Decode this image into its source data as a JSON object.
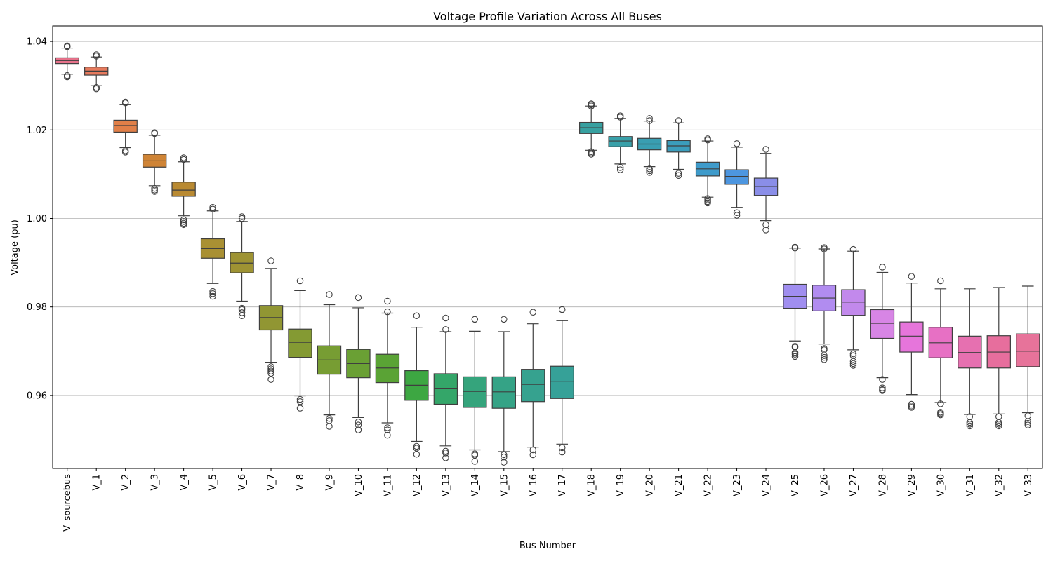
{
  "chart_data": {
    "type": "box",
    "title": "Voltage Profile Variation Across All Buses",
    "xlabel": "Bus Number",
    "ylabel": "Voltage (pu)",
    "ylim": [
      0.9435,
      1.0435
    ],
    "yticks": [
      "0.96",
      "0.98",
      "1.00",
      "1.02",
      "1.04"
    ],
    "ytick_values": [
      0.96,
      0.98,
      1.0,
      1.02,
      1.04
    ],
    "grid": "horizontal",
    "categories": [
      "V_sourcebus",
      "V_1",
      "V_2",
      "V_3",
      "V_4",
      "V_5",
      "V_6",
      "V_7",
      "V_8",
      "V_9",
      "V_10",
      "V_11",
      "V_12",
      "V_13",
      "V_14",
      "V_15",
      "V_16",
      "V_17",
      "V_18",
      "V_19",
      "V_20",
      "V_21",
      "V_22",
      "V_23",
      "V_24",
      "V_25",
      "V_26",
      "V_27",
      "V_28",
      "V_29",
      "V_30",
      "V_31",
      "V_32",
      "V_33"
    ],
    "colors": [
      "#e7728b",
      "#e67a5d",
      "#e07f48",
      "#cf8436",
      "#b98a32",
      "#a99033",
      "#9e9333",
      "#919633",
      "#849a33",
      "#779d33",
      "#6aa034",
      "#5aa335",
      "#3da742",
      "#34a669",
      "#35a47c",
      "#35a386",
      "#36a28f",
      "#36a198",
      "#37a0a0",
      "#38a0a9",
      "#399eb2",
      "#3b9dbc",
      "#3e9bcb",
      "#4d96e0",
      "#8a8ee8",
      "#a08ef0",
      "#b18cf0",
      "#c289ec",
      "#d785e5",
      "#e675db",
      "#e770c4",
      "#e670b0",
      "#e76e9d",
      "#e7739a"
    ],
    "boxes": [
      {
        "whislo": 1.0326,
        "q1": 1.035,
        "med": 1.0357,
        "q3": 1.0363,
        "whishi": 1.0385,
        "fliers": [
          1.032,
          1.0323,
          1.0388,
          1.039
        ]
      },
      {
        "whislo": 1.03,
        "q1": 1.0324,
        "med": 1.0333,
        "q3": 1.0342,
        "whishi": 1.0365,
        "fliers": [
          1.0293,
          1.0296,
          1.0367,
          1.037
        ]
      },
      {
        "whislo": 1.016,
        "q1": 1.0195,
        "med": 1.021,
        "q3": 1.0222,
        "whishi": 1.0257,
        "fliers": [
          1.015,
          1.0153,
          1.0261,
          1.0263
        ]
      },
      {
        "whislo": 1.0074,
        "q1": 1.0116,
        "med": 1.013,
        "q3": 1.0145,
        "whishi": 1.0188,
        "fliers": [
          1.0061,
          1.0064,
          1.0068,
          1.0192,
          1.0194
        ]
      },
      {
        "whislo": 1.0006,
        "q1": 1.005,
        "med": 1.0064,
        "q3": 1.0082,
        "whishi": 1.0128,
        "fliers": [
          0.9986,
          0.9989,
          0.9993,
          0.9997,
          1.0133,
          1.0137
        ]
      },
      {
        "whislo": 0.9853,
        "q1": 0.991,
        "med": 0.9932,
        "q3": 0.9954,
        "whishi": 1.0017,
        "fliers": [
          0.9824,
          0.983,
          0.9835,
          1.0021,
          1.0025
        ]
      },
      {
        "whislo": 0.9813,
        "q1": 0.9877,
        "med": 0.9899,
        "q3": 0.9923,
        "whishi": 0.9993,
        "fliers": [
          0.978,
          0.9787,
          0.9794,
          0.9797,
          1.0,
          1.0004
        ]
      },
      {
        "whislo": 0.9675,
        "q1": 0.9748,
        "med": 0.9776,
        "q3": 0.9803,
        "whishi": 0.9887,
        "fliers": [
          0.9636,
          0.965,
          0.9655,
          0.966,
          0.9665,
          0.9904
        ]
      },
      {
        "whislo": 0.9599,
        "q1": 0.9686,
        "med": 0.972,
        "q3": 0.975,
        "whishi": 0.9837,
        "fliers": [
          0.9571,
          0.9586,
          0.9591,
          0.9859
        ]
      },
      {
        "whislo": 0.9556,
        "q1": 0.9648,
        "med": 0.968,
        "q3": 0.9712,
        "whishi": 0.9805,
        "fliers": [
          0.953,
          0.9543,
          0.9548,
          0.9828
        ]
      },
      {
        "whislo": 0.955,
        "q1": 0.964,
        "med": 0.9672,
        "q3": 0.9704,
        "whishi": 0.9798,
        "fliers": [
          0.9522,
          0.9533,
          0.954,
          0.9821
        ]
      },
      {
        "whislo": 0.9538,
        "q1": 0.9629,
        "med": 0.9662,
        "q3": 0.9693,
        "whishi": 0.9786,
        "fliers": [
          0.951,
          0.9522,
          0.9527,
          0.9789,
          0.9813
        ]
      },
      {
        "whislo": 0.9496,
        "q1": 0.9589,
        "med": 0.9623,
        "q3": 0.9656,
        "whishi": 0.9754,
        "fliers": [
          0.9467,
          0.9481,
          0.9485,
          0.978
        ]
      },
      {
        "whislo": 0.9486,
        "q1": 0.958,
        "med": 0.9615,
        "q3": 0.9649,
        "whishi": 0.9744,
        "fliers": [
          0.9459,
          0.947,
          0.9474,
          0.9749,
          0.9775
        ]
      },
      {
        "whislo": 0.9477,
        "q1": 0.9573,
        "med": 0.9609,
        "q3": 0.9642,
        "whishi": 0.9745,
        "fliers": [
          0.9451,
          0.9465,
          0.9468,
          0.9772
        ]
      },
      {
        "whislo": 0.9473,
        "q1": 0.9571,
        "med": 0.9608,
        "q3": 0.9642,
        "whishi": 0.9744,
        "fliers": [
          0.9449,
          0.9461,
          0.9466,
          0.9772
        ]
      },
      {
        "whislo": 0.9483,
        "q1": 0.9586,
        "med": 0.9625,
        "q3": 0.9659,
        "whishi": 0.9762,
        "fliers": [
          0.9466,
          0.9477,
          0.9788
        ]
      },
      {
        "whislo": 0.949,
        "q1": 0.9593,
        "med": 0.9632,
        "q3": 0.9666,
        "whishi": 0.9769,
        "fliers": [
          0.9472,
          0.9482,
          0.9794
        ]
      },
      {
        "whislo": 1.0154,
        "q1": 1.0192,
        "med": 1.0205,
        "q3": 1.0217,
        "whishi": 1.0254,
        "fliers": [
          1.0145,
          1.0148,
          1.0151,
          1.0254,
          1.0257,
          1.0259
        ]
      },
      {
        "whislo": 1.0123,
        "q1": 1.0162,
        "med": 1.0175,
        "q3": 1.0185,
        "whishi": 1.0226,
        "fliers": [
          1.011,
          1.0115,
          1.0229,
          1.0232
        ]
      },
      {
        "whislo": 1.0117,
        "q1": 1.0155,
        "med": 1.0168,
        "q3": 1.0181,
        "whishi": 1.022,
        "fliers": [
          1.0104,
          1.0108,
          1.0112,
          1.0221,
          1.0226
        ]
      },
      {
        "whislo": 1.0111,
        "q1": 1.015,
        "med": 1.0164,
        "q3": 1.0176,
        "whishi": 1.0216,
        "fliers": [
          1.0097,
          1.0102,
          1.0221
        ]
      },
      {
        "whislo": 1.0048,
        "q1": 1.0096,
        "med": 1.0112,
        "q3": 1.0127,
        "whishi": 1.0175,
        "fliers": [
          1.0035,
          1.0038,
          1.0042,
          1.0045,
          1.0177,
          1.018
        ]
      },
      {
        "whislo": 1.0025,
        "q1": 1.0077,
        "med": 1.0095,
        "q3": 1.011,
        "whishi": 1.0161,
        "fliers": [
          1.0007,
          1.0013,
          1.0169
        ]
      },
      {
        "whislo": 0.9995,
        "q1": 1.0052,
        "med": 1.0072,
        "q3": 1.0091,
        "whishi": 1.0147,
        "fliers": [
          0.9974,
          0.9986,
          1.0156
        ]
      },
      {
        "whislo": 0.9723,
        "q1": 0.9797,
        "med": 0.9824,
        "q3": 0.9851,
        "whishi": 0.9933,
        "fliers": [
          0.9688,
          0.9693,
          0.9697,
          0.9709,
          0.9711,
          0.9933,
          0.9935
        ]
      },
      {
        "whislo": 0.9716,
        "q1": 0.9791,
        "med": 0.982,
        "q3": 0.9849,
        "whishi": 0.9931,
        "fliers": [
          0.9681,
          0.9686,
          0.969,
          0.9703,
          0.9706,
          0.9931,
          0.9934
        ]
      },
      {
        "whislo": 0.9703,
        "q1": 0.9781,
        "med": 0.9811,
        "q3": 0.9839,
        "whishi": 0.9926,
        "fliers": [
          0.9668,
          0.9672,
          0.9677,
          0.969,
          0.9694,
          0.993
        ]
      },
      {
        "whislo": 0.964,
        "q1": 0.9729,
        "med": 0.9763,
        "q3": 0.9794,
        "whishi": 0.9878,
        "fliers": [
          0.9611,
          0.9613,
          0.9617,
          0.9636,
          0.989
        ]
      },
      {
        "whislo": 0.9602,
        "q1": 0.9698,
        "med": 0.9734,
        "q3": 0.9766,
        "whishi": 0.9854,
        "fliers": [
          0.9573,
          0.9576,
          0.958,
          0.9869
        ]
      },
      {
        "whislo": 0.9584,
        "q1": 0.9685,
        "med": 0.9719,
        "q3": 0.9754,
        "whishi": 0.9841,
        "fliers": [
          0.9556,
          0.9559,
          0.9562,
          0.9581,
          0.9859
        ]
      },
      {
        "whislo": 0.9557,
        "q1": 0.9662,
        "med": 0.9697,
        "q3": 0.9734,
        "whishi": 0.9841,
        "fliers": [
          0.9531,
          0.9535,
          0.9539,
          0.9552
        ]
      },
      {
        "whislo": 0.9558,
        "q1": 0.9662,
        "med": 0.9698,
        "q3": 0.9735,
        "whishi": 0.9844,
        "fliers": [
          0.9531,
          0.9535,
          0.9539,
          0.9552
        ]
      },
      {
        "whislo": 0.9561,
        "q1": 0.9665,
        "med": 0.97,
        "q3": 0.9739,
        "whishi": 0.9847,
        "fliers": [
          0.9533,
          0.9537,
          0.9541,
          0.9554
        ]
      }
    ]
  }
}
